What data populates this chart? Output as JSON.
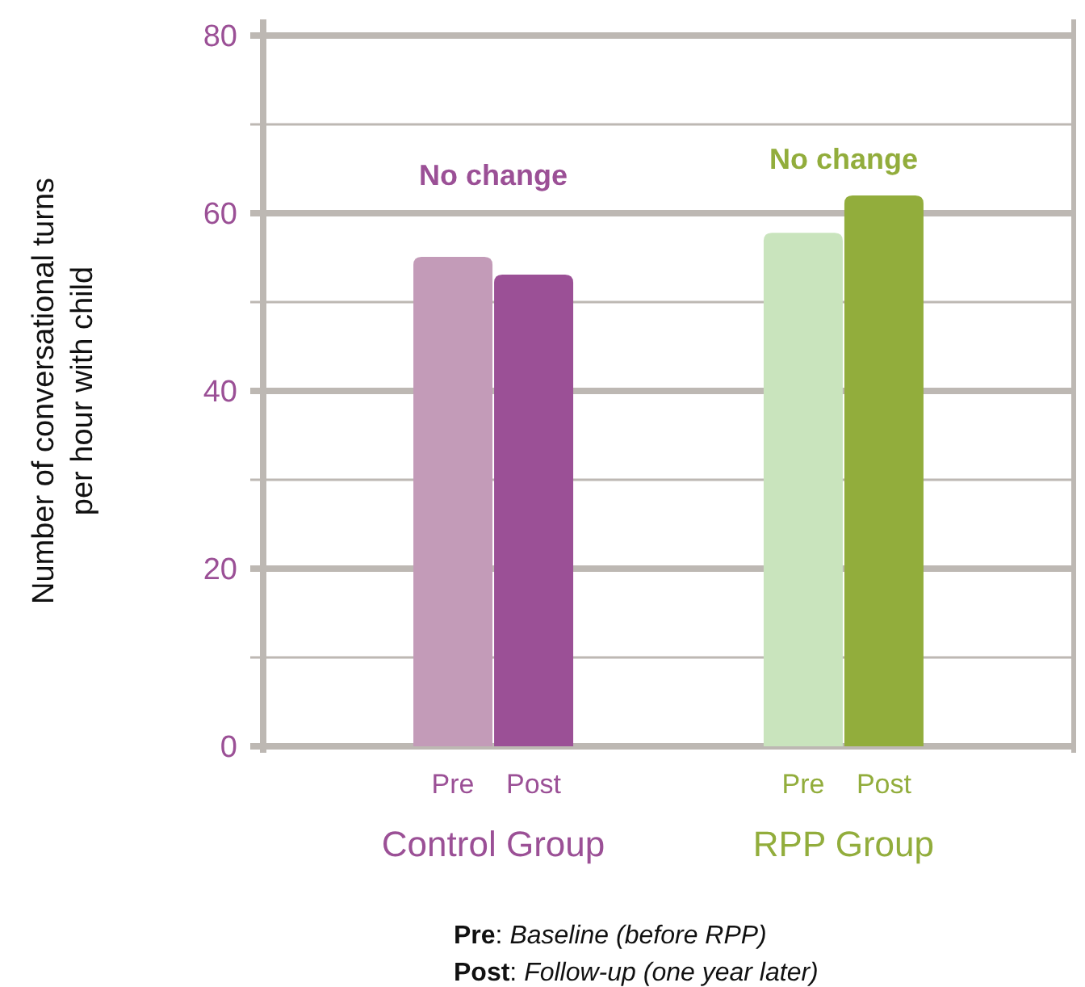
{
  "chart_data": {
    "type": "bar",
    "ylabel": "Number of conversational turns\nper hour with child",
    "categories": [
      "Control Group",
      "RPP Group"
    ],
    "series": [
      {
        "name": "Pre",
        "colors": [
          "#c39bb8",
          "#c9e4bd"
        ],
        "values": [
          55.1,
          57.8
        ]
      },
      {
        "name": "Post",
        "colors": [
          "#9b5096",
          "#92ad3c"
        ],
        "values": [
          53.1,
          62
        ]
      }
    ],
    "ylim": [
      0,
      80
    ],
    "yticks": [
      0,
      {
        "value": 10,
        "label": null
      },
      20,
      {
        "value": 30,
        "label": null
      },
      40,
      {
        "value": 50,
        "label": null
      },
      60,
      {
        "value": 70,
        "label": null
      },
      80
    ],
    "grid": "y",
    "annotations": [
      "No change",
      "No change",
      "Pre: Baseline (before RPP)",
      "Post: Follow-up (one year later)"
    ]
  }
}
